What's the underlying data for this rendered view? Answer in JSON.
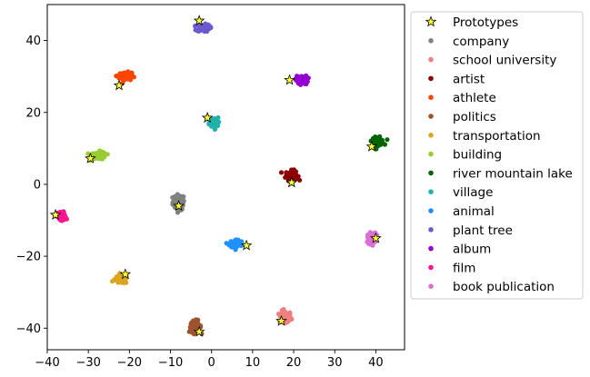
{
  "chart_data": {
    "type": "scatter",
    "title": "",
    "xlabel": "",
    "ylabel": "",
    "xlim": [
      -40,
      47
    ],
    "ylim": [
      -46,
      50
    ],
    "xticks": [
      -40,
      -30,
      -20,
      -10,
      0,
      10,
      20,
      30,
      40
    ],
    "yticks": [
      -40,
      -20,
      0,
      20,
      40
    ],
    "legend_position": "right",
    "prototypes": {
      "name": "Prototypes",
      "color": "#ffff33",
      "points": [
        [
          -3,
          45.5
        ],
        [
          -22.5,
          27.5
        ],
        [
          -1,
          18.5
        ],
        [
          -29.5,
          7.2
        ],
        [
          19,
          29
        ],
        [
          39,
          10.5
        ],
        [
          19.5,
          0.5
        ],
        [
          -8,
          -6
        ],
        [
          -38,
          -8.5
        ],
        [
          40,
          -15
        ],
        [
          8.5,
          -17
        ],
        [
          -21,
          -25
        ],
        [
          17,
          -38
        ],
        [
          -3,
          -41
        ]
      ]
    },
    "series": [
      {
        "name": "company",
        "color": "#808080",
        "center": [
          -8,
          -5
        ],
        "spread": [
          1.6,
          2.4
        ]
      },
      {
        "name": "school university",
        "color": "#f08080",
        "center": [
          18,
          -37
        ],
        "spread": [
          1.6,
          2.0
        ]
      },
      {
        "name": "artist",
        "color": "#8b0000",
        "center": [
          19.5,
          2.5
        ],
        "spread": [
          1.6,
          1.5
        ]
      },
      {
        "name": "athlete",
        "color": "#ff4500",
        "center": [
          -21,
          30
        ],
        "spread": [
          1.7,
          1.3
        ]
      },
      {
        "name": "politics",
        "color": "#a0522d",
        "center": [
          -4,
          -39.5
        ],
        "spread": [
          1.6,
          1.8
        ]
      },
      {
        "name": "transportation",
        "color": "#daa520",
        "center": [
          -22,
          -26.5
        ],
        "spread": [
          1.8,
          1.2
        ]
      },
      {
        "name": "building",
        "color": "#9acd32",
        "center": [
          -27.5,
          8
        ],
        "spread": [
          2.0,
          1.2
        ]
      },
      {
        "name": "river mountain lake",
        "color": "#006400",
        "center": [
          40.5,
          12
        ],
        "spread": [
          1.6,
          1.2
        ]
      },
      {
        "name": "village",
        "color": "#20b2aa",
        "center": [
          0.5,
          17
        ],
        "spread": [
          1.2,
          1.7
        ]
      },
      {
        "name": "animal",
        "color": "#1e90ff",
        "center": [
          6,
          -16.5
        ],
        "spread": [
          1.8,
          1.3
        ]
      },
      {
        "name": "plant tree",
        "color": "#6a5acd",
        "center": [
          -2,
          43.5
        ],
        "spread": [
          1.7,
          1.1
        ]
      },
      {
        "name": "album",
        "color": "#9400d3",
        "center": [
          22,
          29
        ],
        "spread": [
          1.6,
          1.3
        ]
      },
      {
        "name": "film",
        "color": "#ff1493",
        "center": [
          -36.5,
          -9
        ],
        "spread": [
          1.2,
          1.5
        ]
      },
      {
        "name": "book publication",
        "color": "#da70d6",
        "center": [
          39,
          -15
        ],
        "spread": [
          1.1,
          1.7
        ]
      }
    ]
  }
}
